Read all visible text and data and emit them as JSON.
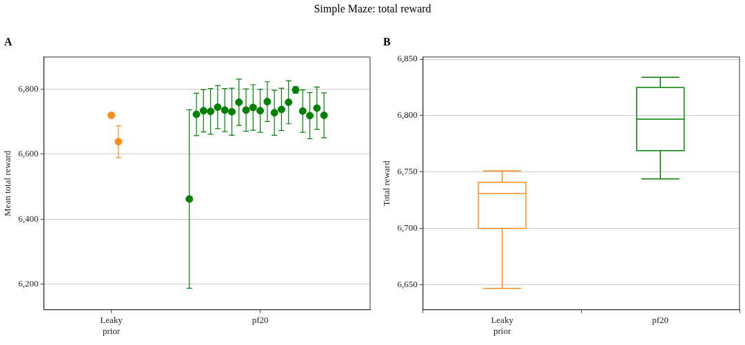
{
  "chart_data": [
    {
      "type": "scatter",
      "title": "Simple Maze: total reward",
      "annotations": [
        "A"
      ],
      "ylabel": "Mean total reward",
      "categories": [
        null,
        null,
        null,
        null,
        null,
        null,
        null,
        null,
        null,
        "Leaky prior",
        null,
        null,
        null,
        null,
        null,
        null,
        null,
        null,
        null,
        null,
        null,
        null,
        null,
        null,
        null,
        null,
        null,
        null,
        null,
        null,
        "pf20",
        null,
        null,
        null,
        null,
        null,
        null,
        null,
        null,
        null,
        null,
        null,
        null,
        null,
        null,
        null
      ],
      "ylim": [
        6122,
        6898
      ],
      "yticks": [
        {
          "value": 6200,
          "label": "6,200"
        },
        {
          "value": 6400,
          "label": "6,400"
        },
        {
          "value": 6600,
          "label": "6,600"
        },
        {
          "value": 6800,
          "label": "6,800"
        }
      ],
      "grid": "y",
      "marker": "circle",
      "series": [
        {
          "color": "#ff8c1a",
          "values": [
            null,
            null,
            null,
            null,
            null,
            null,
            null,
            null,
            null,
            6719,
            6638,
            null,
            null,
            null,
            null,
            null,
            null,
            null,
            null,
            null,
            null,
            null,
            null,
            null,
            null,
            null,
            null,
            null,
            null,
            null,
            null,
            null,
            null,
            null,
            null,
            null,
            null,
            null,
            null,
            null,
            null,
            null,
            null,
            null,
            null,
            null
          ],
          "errors": [
            null,
            null,
            null,
            null,
            null,
            null,
            null,
            null,
            null,
            7,
            49,
            null,
            null,
            null,
            null,
            null,
            null,
            null,
            null,
            null,
            null,
            null,
            null,
            null,
            null,
            null,
            null,
            null,
            null,
            null,
            null,
            null,
            null,
            null,
            null,
            null,
            null,
            null,
            null,
            null,
            null,
            null,
            null,
            null,
            null,
            null
          ]
        },
        {
          "color": "#008000",
          "values": [
            null,
            null,
            null,
            null,
            null,
            null,
            null,
            null,
            null,
            null,
            null,
            null,
            null,
            null,
            null,
            null,
            null,
            null,
            null,
            null,
            6462,
            6722,
            6733,
            6731,
            6744,
            6735,
            6730,
            6759,
            6735,
            6743,
            6733,
            6761,
            6727,
            6737,
            6759,
            6797,
            6732,
            6718,
            6741,
            6719,
            null,
            null,
            null,
            null,
            null,
            null
          ],
          "errors": [
            null,
            null,
            null,
            null,
            null,
            null,
            null,
            null,
            null,
            null,
            null,
            null,
            null,
            null,
            null,
            null,
            null,
            null,
            null,
            null,
            274,
            65,
            65,
            70,
            66,
            66,
            72,
            71,
            65,
            70,
            66,
            61,
            69,
            65,
            66,
            10,
            65,
            71,
            65,
            69,
            null,
            null,
            null,
            null,
            null,
            null
          ]
        }
      ]
    },
    {
      "type": "box",
      "annotations": [
        "B"
      ],
      "ylabel": "Total reward",
      "categories": [
        "Leaky prior",
        "pf20"
      ],
      "colors": [
        "#ff8c1a",
        "#008000"
      ],
      "ylim": [
        6628,
        6852
      ],
      "yticks": [
        {
          "value": 6650,
          "label": "6,650"
        },
        {
          "value": 6700,
          "label": "6,700"
        },
        {
          "value": 6750,
          "label": "6,750"
        },
        {
          "value": 6800,
          "label": "6,800"
        },
        {
          "value": 6850,
          "label": "6,850"
        }
      ],
      "grid": "y",
      "boxes": [
        {
          "low": 6647,
          "q1": 6700,
          "median": 6731,
          "q3": 6741,
          "high": 6751
        },
        {
          "low": 6744,
          "q1": 6769,
          "median": 6797,
          "q3": 6825,
          "high": 6834
        }
      ]
    }
  ]
}
